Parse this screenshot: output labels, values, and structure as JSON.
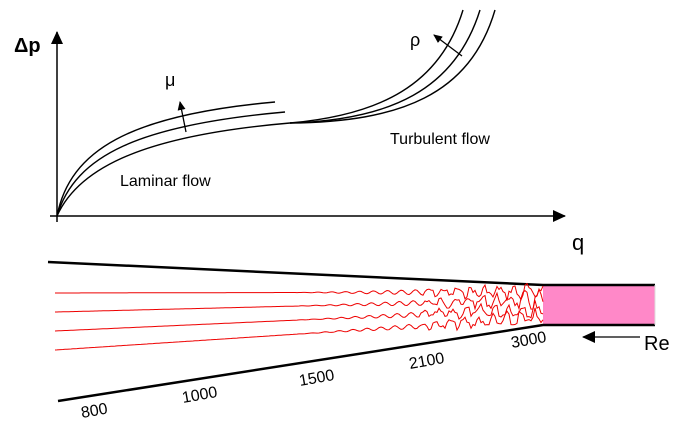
{
  "axes": {
    "y_label": "Δp",
    "x_label": "q"
  },
  "arrows": {
    "viscosity": "μ",
    "density": "ρ"
  },
  "regions": {
    "laminar": "Laminar flow",
    "turbulent": "Turbulent flow"
  },
  "pipe": {
    "re_label": "Re",
    "re_values": [
      "800",
      "1000",
      "1500",
      "2100",
      "3000"
    ]
  }
}
